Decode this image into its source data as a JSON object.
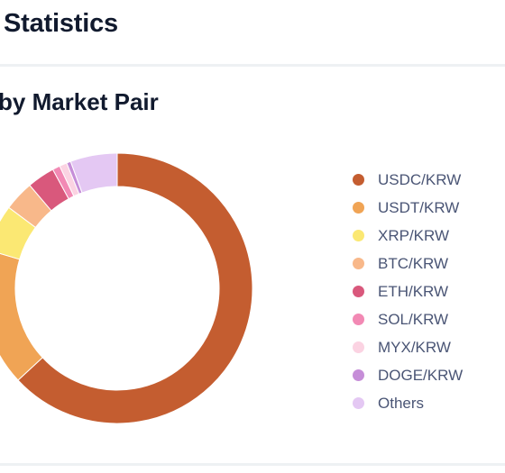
{
  "header": {
    "title": "Statistics"
  },
  "section": {
    "title": "by Market Pair"
  },
  "chart_data": {
    "type": "pie",
    "variant": "donut",
    "categories": [
      "USDC/KRW",
      "USDT/KRW",
      "XRP/KRW",
      "BTC/KRW",
      "ETH/KRW",
      "SOL/KRW",
      "MYX/KRW",
      "DOGE/KRW",
      "Others"
    ],
    "values": [
      63.1,
      16.5,
      5.6,
      3.6,
      3.3,
      0.9,
      0.9,
      0.5,
      5.6
    ],
    "unit": "%",
    "colors": [
      "#c45d30",
      "#f0a455",
      "#fbe873",
      "#f8b88a",
      "#d9587c",
      "#f289b4",
      "#fbd3e2",
      "#c68ed8",
      "#e4c8f3"
    ],
    "legend_position": "right"
  }
}
